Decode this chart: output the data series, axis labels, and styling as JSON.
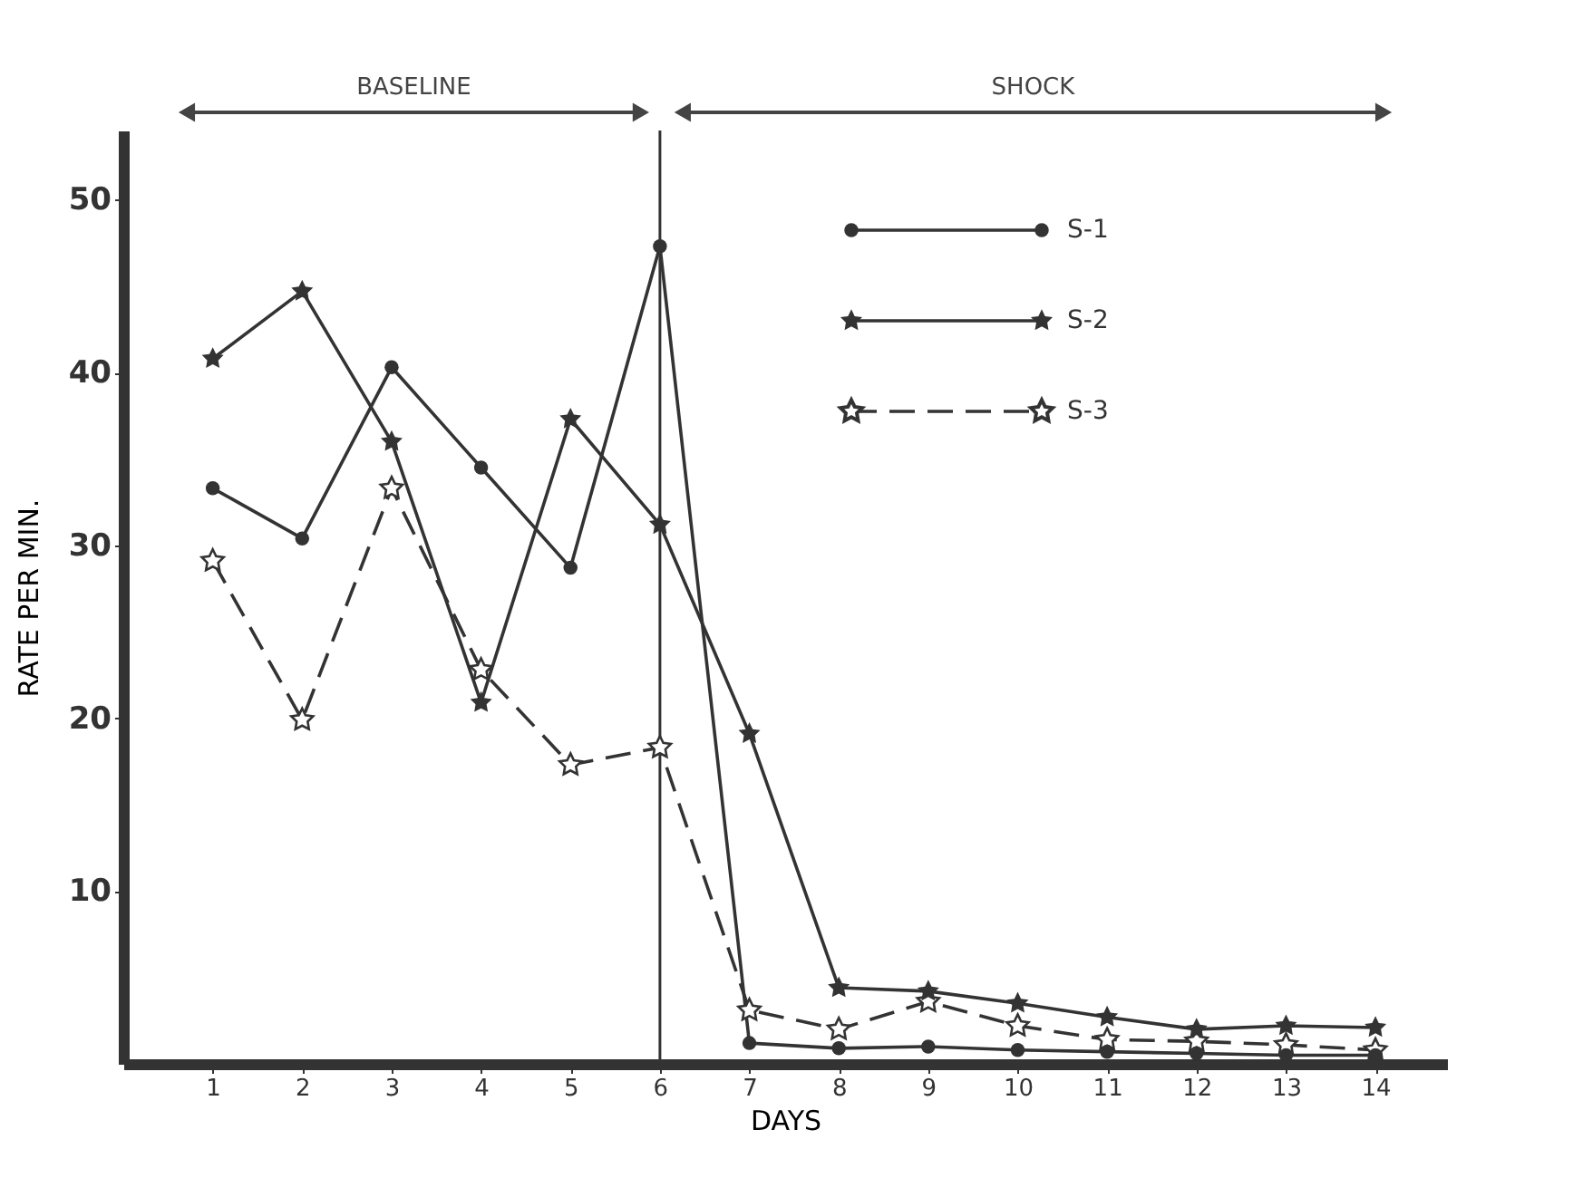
{
  "chart_data": {
    "type": "line",
    "xlabel": "DAYS",
    "ylabel": "RATE PER MIN.",
    "x": [
      1,
      2,
      3,
      4,
      5,
      6,
      7,
      8,
      9,
      10,
      11,
      12,
      13,
      14
    ],
    "series": [
      {
        "name": "S-1",
        "color": "#333333",
        "marker": "circle",
        "line_style": "solid",
        "values": [
          33.3,
          30.4,
          40.3,
          34.5,
          28.7,
          47.3,
          1.2,
          0.9,
          1.0,
          0.8,
          0.7,
          0.6,
          0.5,
          0.5
        ]
      },
      {
        "name": "S-2",
        "color": "#333333",
        "marker": "star",
        "line_style": "solid",
        "values": [
          40.8,
          44.7,
          36.0,
          20.9,
          37.3,
          31.2,
          19.1,
          4.4,
          4.2,
          3.5,
          2.7,
          2.0,
          2.2,
          2.1
        ]
      },
      {
        "name": "S-3",
        "color": "#333333",
        "marker": "star-open",
        "line_style": "dashed",
        "values": [
          29.1,
          19.9,
          33.3,
          22.8,
          17.3,
          18.3,
          3.1,
          2.0,
          3.6,
          2.2,
          1.4,
          1.3,
          1.1,
          0.8
        ]
      }
    ],
    "xlim": [
      0,
      14.8
    ],
    "xticks": [
      1,
      2,
      3,
      4,
      5,
      6,
      7,
      8,
      9,
      10,
      11,
      12,
      13,
      14
    ],
    "ylim": [
      0,
      54
    ],
    "yticks": [
      10,
      20,
      30,
      40,
      50
    ],
    "ref_lines": [
      {
        "axis": "x",
        "value": 6,
        "color": "#333333"
      }
    ],
    "annotations": [
      "BASELINE",
      "SHOCK"
    ],
    "grid": false,
    "legend": "top right"
  }
}
